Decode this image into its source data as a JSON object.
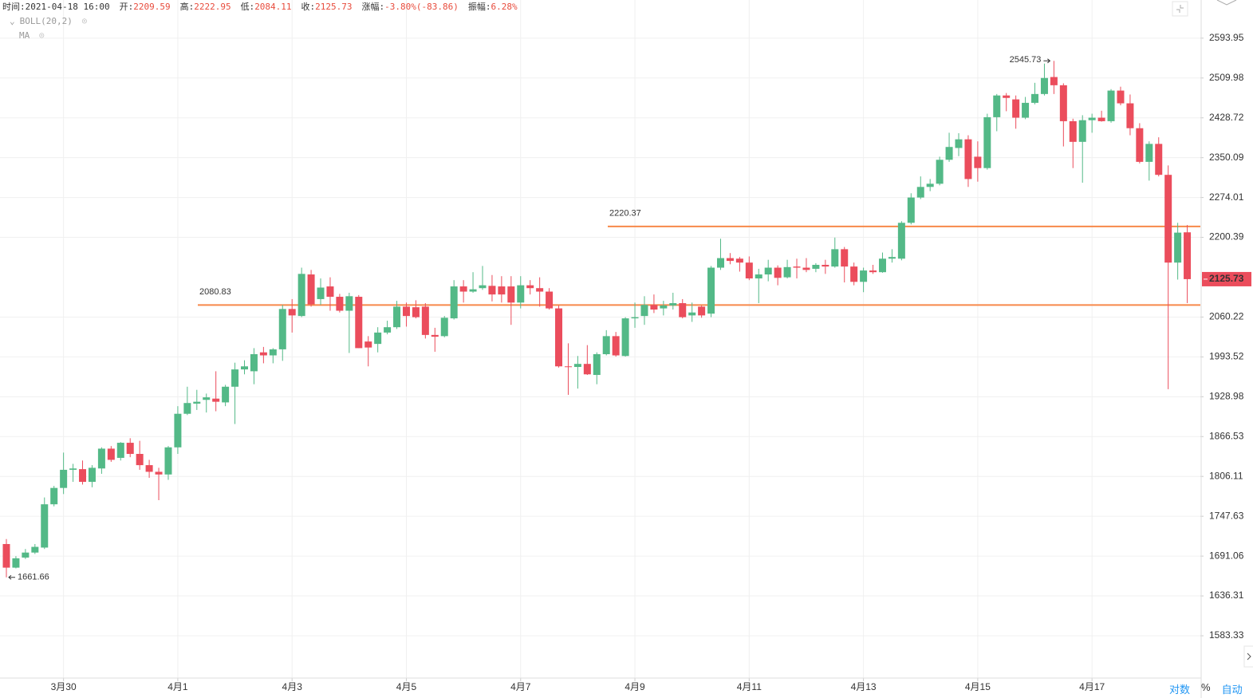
{
  "chart_data": {
    "type": "candlestick",
    "header": [
      {
        "label": "时间:",
        "value": "2021-04-18 16:00"
      },
      {
        "label": "开:",
        "value": 2209.59
      },
      {
        "label": "高:",
        "value": 2222.95
      },
      {
        "label": "低:",
        "value": 2084.11
      },
      {
        "label": "收:",
        "value": 2125.73
      },
      {
        "label": "涨幅:",
        "value": "-3.80%(-83.86)"
      },
      {
        "label": "振幅:",
        "value": "6.28%"
      }
    ],
    "indicators": [
      "BOLL(20,2)",
      "MA"
    ],
    "controls": [
      "对数",
      "%",
      "自动"
    ],
    "log_scale": true,
    "grid": true,
    "up_color": "#53b987",
    "down_color": "#eb4d5c",
    "line_color": "#f7894a",
    "ylim": [
      1529,
      2677
    ],
    "yticks": [
      1583.33,
      1636.31,
      1691.06,
      1747.63,
      1806.11,
      1866.53,
      1928.98,
      1993.52,
      2060.22,
      2200.39,
      2274.01,
      2350.09,
      2428.72,
      2509.98,
      2593.95
    ],
    "xlim": [
      0,
      124
    ],
    "xticks": [
      {
        "value": 6,
        "label": "3月30"
      },
      {
        "value": 18,
        "label": "4月1"
      },
      {
        "value": 30,
        "label": "4月3"
      },
      {
        "value": 42,
        "label": "4月5"
      },
      {
        "value": 54,
        "label": "4月7"
      },
      {
        "value": 66,
        "label": "4月9"
      },
      {
        "value": 78,
        "label": "4月11"
      },
      {
        "value": 90,
        "label": "4月13"
      },
      {
        "value": 102,
        "label": "4月15"
      },
      {
        "value": 114,
        "label": "4月17"
      }
    ],
    "hlines": [
      {
        "value": 2080.83
      },
      {
        "value": 2220.37
      }
    ],
    "open": [
      1708,
      1675,
      1689,
      1696,
      1703,
      1765,
      1789,
      1816,
      1817,
      1798,
      1818,
      1848,
      1834,
      1857,
      1840,
      1823,
      1813,
      1809,
      1850,
      1902,
      1918,
      1924,
      1926,
      1920,
      1945,
      1973,
      1970,
      2001,
      1996,
      2006,
      2074,
      2062,
      2134,
      2091,
      2113,
      2095,
      2071,
      2095,
      2019,
      2015,
      2034,
      2043,
      2078,
      2077,
      2078,
      2030,
      2028,
      2058,
      2113,
      2104,
      2110,
      2114,
      2113,
      2113,
      2085,
      2115,
      2110,
      2104,
      2075,
      1978,
      1977,
      1982,
      1964,
      1998,
      2028,
      1995,
      2058,
      2062,
      2081,
      2075,
      2080,
      2084,
      2063,
      2078,
      2066,
      2146,
      2163,
      2162,
      2155,
      2127,
      2134,
      2146,
      2129,
      2148,
      2146,
      2144,
      2151,
      2148,
      2179,
      2148,
      2121,
      2141,
      2138,
      2162,
      2162,
      2227,
      2274,
      2294,
      2300,
      2346,
      2369,
      2386,
      2352,
      2330,
      2430,
      2474,
      2466,
      2429,
      2459,
      2477,
      2512,
      2495,
      2422,
      2381,
      2424,
      2429,
      2422,
      2484,
      2458,
      2408,
      2342,
      2377,
      2317,
      2155,
      2209.59
    ],
    "close": [
      1675,
      1688,
      1696,
      1704,
      1765,
      1789,
      1816,
      1818,
      1798,
      1819,
      1848,
      1831,
      1857,
      1840,
      1823,
      1813,
      1809,
      1850,
      1902,
      1919,
      1921,
      1928,
      1921,
      1945,
      1973,
      1978,
      1998,
      1996,
      2006,
      2074,
      2063,
      2135,
      2082,
      2111,
      2095,
      2071,
      2096,
      2008,
      2009,
      2034,
      2043,
      2078,
      2062,
      2060,
      2030,
      2027,
      2059,
      2113,
      2104,
      2108,
      2115,
      2099,
      2099,
      2085,
      2115,
      2110,
      2104,
      2075,
      1978,
      1977,
      1982,
      1965,
      1998,
      2028,
      1996,
      2058,
      2060,
      2081,
      2073,
      2080,
      2084,
      2060,
      2068,
      2063,
      2146,
      2163,
      2158,
      2155,
      2127,
      2134,
      2146,
      2128,
      2147,
      2146,
      2142,
      2151,
      2148,
      2179,
      2148,
      2121,
      2141,
      2138,
      2162,
      2165,
      2227,
      2274,
      2294,
      2300,
      2346,
      2371,
      2386,
      2309,
      2330,
      2430,
      2474,
      2469,
      2429,
      2459,
      2477,
      2510,
      2495,
      2422,
      2381,
      2424,
      2429,
      2422,
      2484,
      2458,
      2408,
      2342,
      2377,
      2317,
      2155,
      2209,
      2125.73
    ],
    "high": [
      1715,
      1691,
      1701,
      1708,
      1775,
      1792,
      1842,
      1825,
      1830,
      1823,
      1850,
      1852,
      1858,
      1864,
      1860,
      1831,
      1819,
      1852,
      1914,
      1945,
      1940,
      1934,
      1970,
      1948,
      1984,
      1988,
      2008,
      2010,
      2008,
      2081,
      2091,
      2146,
      2142,
      2127,
      2129,
      2100,
      2102,
      2098,
      2028,
      2043,
      2054,
      2088,
      2085,
      2089,
      2084,
      2042,
      2062,
      2124,
      2124,
      2138,
      2149,
      2133,
      2131,
      2131,
      2131,
      2124,
      2129,
      2110,
      2080,
      2016,
      1995,
      2013,
      2001,
      2038,
      2035,
      2060,
      2085,
      2096,
      2099,
      2088,
      2102,
      2091,
      2085,
      2080,
      2149,
      2198,
      2172,
      2165,
      2166,
      2144,
      2160,
      2150,
      2160,
      2162,
      2163,
      2154,
      2160,
      2200,
      2183,
      2155,
      2146,
      2151,
      2173,
      2179,
      2230,
      2282,
      2314,
      2309,
      2352,
      2399,
      2398,
      2394,
      2382,
      2437,
      2477,
      2479,
      2474,
      2471,
      2500,
      2540,
      2545.73,
      2499,
      2427,
      2434,
      2437,
      2443,
      2487,
      2492,
      2476,
      2418,
      2382,
      2390,
      2335,
      2227,
      2222.95
    ],
    "low": [
      1661.66,
      1674,
      1687,
      1694,
      1701,
      1762,
      1780,
      1798,
      1794,
      1790,
      1810,
      1828,
      1830,
      1835,
      1816,
      1804,
      1771,
      1801,
      1840,
      1900,
      1908,
      1904,
      1906,
      1914,
      1886,
      1965,
      1949,
      1983,
      1983,
      1987,
      2034,
      2060,
      2078,
      2081,
      2071,
      2068,
      2000,
      2008,
      1978,
      2001,
      2031,
      2040,
      2044,
      2058,
      2024,
      2002,
      2026,
      2056,
      2085,
      2102,
      2107,
      2087,
      2085,
      2047,
      2075,
      2099,
      2078,
      2073,
      1976,
      1932,
      1942,
      1964,
      1949,
      1996,
      1994,
      1994,
      2042,
      2047,
      2067,
      2063,
      2073,
      2058,
      2052,
      2059,
      2060,
      2142,
      2152,
      2139,
      2124,
      2084,
      2122,
      2115,
      2127,
      2127,
      2138,
      2138,
      2135,
      2146,
      2120,
      2115,
      2103,
      2135,
      2137,
      2155,
      2159,
      2224,
      2271,
      2286,
      2297,
      2342,
      2353,
      2294,
      2304,
      2327,
      2402,
      2442,
      2407,
      2426,
      2456,
      2474,
      2477,
      2372,
      2330,
      2302,
      2399,
      2421,
      2419,
      2454,
      2394,
      2339,
      2306,
      2314,
      1941,
      2125,
      2084.11
    ]
  }
}
